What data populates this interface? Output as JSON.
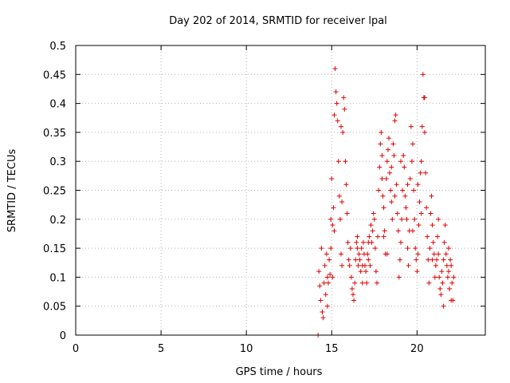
{
  "chart_data": {
    "type": "scatter",
    "title": "Day 202 of 2014, SRMTID for receiver lpal",
    "xlabel": "GPS time / hours",
    "ylabel": "SRMTID / TECUs",
    "xlim": [
      0,
      24
    ],
    "ylim": [
      0,
      0.5
    ],
    "xticks": [
      0,
      5,
      10,
      15,
      20
    ],
    "xtick_labels": [
      "0",
      "5",
      "10",
      "15",
      "20"
    ],
    "yticks": [
      0,
      0.05,
      0.1,
      0.15,
      0.2,
      0.25,
      0.3,
      0.35,
      0.4,
      0.45,
      0.5
    ],
    "ytick_labels": [
      "0",
      "0.05",
      "0.1",
      "0.15",
      "0.2",
      "0.25",
      "0.3",
      "0.35",
      "0.4",
      "0.45",
      "0.5"
    ],
    "grid": true,
    "marker": "plus",
    "marker_color": "#e00000",
    "series": [
      {
        "name": "SRMTID",
        "points": [
          [
            14.2,
            0.0
          ],
          [
            14.25,
            0.11
          ],
          [
            14.3,
            0.085
          ],
          [
            14.35,
            0.06
          ],
          [
            14.4,
            0.15
          ],
          [
            14.45,
            0.04
          ],
          [
            14.5,
            0.03
          ],
          [
            14.55,
            0.09
          ],
          [
            14.6,
            0.12
          ],
          [
            14.65,
            0.07
          ],
          [
            14.7,
            0.14
          ],
          [
            14.75,
            0.1
          ],
          [
            14.8,
            0.09
          ],
          [
            14.85,
            0.13
          ],
          [
            14.9,
            0.105
          ],
          [
            14.95,
            0.2
          ],
          [
            15.0,
            0.27
          ],
          [
            15.05,
            0.19
          ],
          [
            15.1,
            0.22
          ],
          [
            15.15,
            0.38
          ],
          [
            15.2,
            0.46
          ],
          [
            15.25,
            0.42
          ],
          [
            15.3,
            0.4
          ],
          [
            15.35,
            0.37
          ],
          [
            15.4,
            0.3
          ],
          [
            15.45,
            0.24
          ],
          [
            15.5,
            0.2
          ],
          [
            15.55,
            0.14
          ],
          [
            15.6,
            0.12
          ],
          [
            15.65,
            0.35
          ],
          [
            15.7,
            0.41
          ],
          [
            15.75,
            0.39
          ],
          [
            15.8,
            0.3
          ],
          [
            15.85,
            0.26
          ],
          [
            15.9,
            0.21
          ],
          [
            15.95,
            0.16
          ],
          [
            16.0,
            0.13
          ],
          [
            16.05,
            0.12
          ],
          [
            16.1,
            0.15
          ],
          [
            16.15,
            0.1
          ],
          [
            16.2,
            0.08
          ],
          [
            16.25,
            0.07
          ],
          [
            16.3,
            0.06
          ],
          [
            16.35,
            0.09
          ],
          [
            16.4,
            0.13
          ],
          [
            16.45,
            0.16
          ],
          [
            16.5,
            0.15
          ],
          [
            16.55,
            0.12
          ],
          [
            16.6,
            0.14
          ],
          [
            16.65,
            0.13
          ],
          [
            16.7,
            0.11
          ],
          [
            16.75,
            0.15
          ],
          [
            16.8,
            0.12
          ],
          [
            16.85,
            0.16
          ],
          [
            16.9,
            0.14
          ],
          [
            16.95,
            0.12
          ],
          [
            17.0,
            0.11
          ],
          [
            17.05,
            0.09
          ],
          [
            17.1,
            0.14
          ],
          [
            17.15,
            0.13
          ],
          [
            17.2,
            0.17
          ],
          [
            17.25,
            0.12
          ],
          [
            17.3,
            0.19
          ],
          [
            17.35,
            0.16
          ],
          [
            17.4,
            0.18
          ],
          [
            17.45,
            0.21
          ],
          [
            17.5,
            0.2
          ],
          [
            17.55,
            0.15
          ],
          [
            17.6,
            0.11
          ],
          [
            17.65,
            0.09
          ],
          [
            17.7,
            0.17
          ],
          [
            17.75,
            0.25
          ],
          [
            17.8,
            0.29
          ],
          [
            17.85,
            0.33
          ],
          [
            17.9,
            0.35
          ],
          [
            17.95,
            0.27
          ],
          [
            18.0,
            0.24
          ],
          [
            18.05,
            0.22
          ],
          [
            18.1,
            0.18
          ],
          [
            18.15,
            0.14
          ],
          [
            18.2,
            0.27
          ],
          [
            18.25,
            0.3
          ],
          [
            18.3,
            0.32
          ],
          [
            18.35,
            0.34
          ],
          [
            18.4,
            0.28
          ],
          [
            18.45,
            0.25
          ],
          [
            18.5,
            0.23
          ],
          [
            18.55,
            0.2
          ],
          [
            18.6,
            0.33
          ],
          [
            18.65,
            0.31
          ],
          [
            18.7,
            0.37
          ],
          [
            18.75,
            0.38
          ],
          [
            18.8,
            0.26
          ],
          [
            18.85,
            0.21
          ],
          [
            18.9,
            0.18
          ],
          [
            18.95,
            0.1
          ],
          [
            19.0,
            0.13
          ],
          [
            19.05,
            0.16
          ],
          [
            19.1,
            0.2
          ],
          [
            19.15,
            0.25
          ],
          [
            19.2,
            0.31
          ],
          [
            19.25,
            0.29
          ],
          [
            19.3,
            0.24
          ],
          [
            19.35,
            0.22
          ],
          [
            19.4,
            0.2
          ],
          [
            19.45,
            0.15
          ],
          [
            19.5,
            0.12
          ],
          [
            19.55,
            0.18
          ],
          [
            19.6,
            0.27
          ],
          [
            19.65,
            0.36
          ],
          [
            19.7,
            0.3
          ],
          [
            19.75,
            0.33
          ],
          [
            19.8,
            0.25
          ],
          [
            19.85,
            0.2
          ],
          [
            19.9,
            0.15
          ],
          [
            19.95,
            0.13
          ],
          [
            20.0,
            0.11
          ],
          [
            20.05,
            0.14
          ],
          [
            20.1,
            0.19
          ],
          [
            20.15,
            0.23
          ],
          [
            20.2,
            0.28
          ],
          [
            20.25,
            0.3
          ],
          [
            20.3,
            0.36
          ],
          [
            20.35,
            0.45
          ],
          [
            20.4,
            0.41
          ],
          [
            20.45,
            0.35
          ],
          [
            20.5,
            0.28
          ],
          [
            20.55,
            0.22
          ],
          [
            20.6,
            0.17
          ],
          [
            20.65,
            0.13
          ],
          [
            20.7,
            0.09
          ],
          [
            20.75,
            0.15
          ],
          [
            20.8,
            0.21
          ],
          [
            20.85,
            0.24
          ],
          [
            20.9,
            0.19
          ],
          [
            20.95,
            0.16
          ],
          [
            21.0,
            0.14
          ],
          [
            21.05,
            0.1
          ],
          [
            21.1,
            0.12
          ],
          [
            21.15,
            0.13
          ],
          [
            21.2,
            0.17
          ],
          [
            21.25,
            0.14
          ],
          [
            21.3,
            0.1
          ],
          [
            21.35,
            0.08
          ],
          [
            21.4,
            0.07
          ],
          [
            21.45,
            0.11
          ],
          [
            21.5,
            0.09
          ],
          [
            21.55,
            0.13
          ],
          [
            21.6,
            0.16
          ],
          [
            21.65,
            0.19
          ],
          [
            21.7,
            0.14
          ],
          [
            21.75,
            0.12
          ],
          [
            21.8,
            0.1
          ],
          [
            21.85,
            0.11
          ],
          [
            21.9,
            0.08
          ],
          [
            21.95,
            0.13
          ],
          [
            22.0,
            0.12
          ],
          [
            22.05,
            0.09
          ],
          [
            22.1,
            0.06
          ],
          [
            22.15,
            0.1
          ],
          [
            15.05,
            0.1
          ],
          [
            15.15,
            0.18
          ],
          [
            15.55,
            0.36
          ],
          [
            15.6,
            0.23
          ],
          [
            16.5,
            0.17
          ],
          [
            16.8,
            0.09
          ],
          [
            17.15,
            0.16
          ],
          [
            17.95,
            0.31
          ],
          [
            18.05,
            0.17
          ],
          [
            18.25,
            0.14
          ],
          [
            18.5,
            0.29
          ],
          [
            18.7,
            0.24
          ],
          [
            19.05,
            0.3
          ],
          [
            19.45,
            0.26
          ],
          [
            19.75,
            0.18
          ],
          [
            20.05,
            0.26
          ],
          [
            20.25,
            0.21
          ],
          [
            20.45,
            0.41
          ],
          [
            20.9,
            0.13
          ],
          [
            21.25,
            0.2
          ],
          [
            21.55,
            0.05
          ],
          [
            21.85,
            0.15
          ],
          [
            22.0,
            0.06
          ],
          [
            14.75,
            0.05
          ],
          [
            14.95,
            0.15
          ]
        ]
      }
    ]
  }
}
